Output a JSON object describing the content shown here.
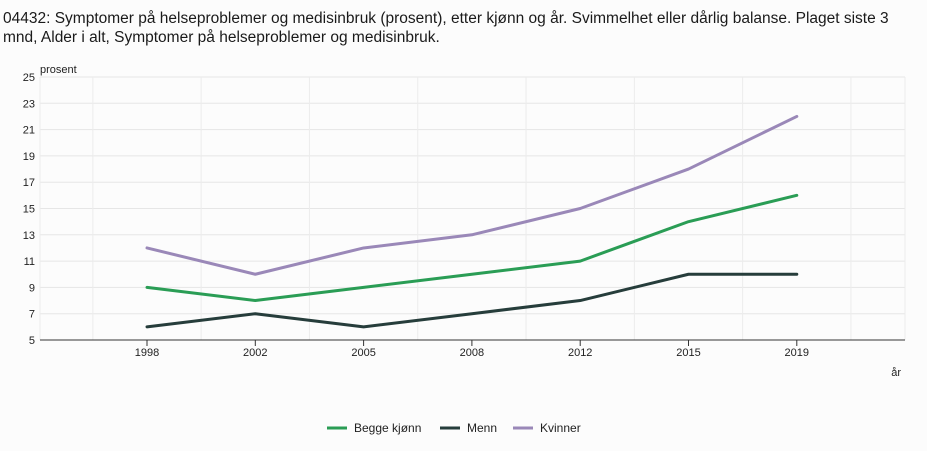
{
  "chart_data": {
    "type": "line",
    "title": "04432: Symptomer på helseproblemer og medisinbruk (prosent), etter kjønn og år. Svimmelhet eller dårlig balanse. Plaget siste 3 mnd, Alder i alt, Symptomer på helseproblemer og medisinbruk.",
    "ylabel": "prosent",
    "xlabel": "år",
    "categories": [
      "1998",
      "2002",
      "2005",
      "2008",
      "2012",
      "2015",
      "2019"
    ],
    "ylim": [
      5,
      25
    ],
    "yticks": [
      5,
      7,
      9,
      11,
      13,
      15,
      17,
      19,
      21,
      23,
      25
    ],
    "grid": true,
    "legend_position": "bottom-center",
    "series": [
      {
        "name": "Begge kjønn",
        "color": "#2a9d55",
        "values": [
          9,
          8,
          9,
          10,
          11,
          14,
          16
        ]
      },
      {
        "name": "Menn",
        "color": "#263d3b",
        "values": [
          6,
          7,
          6,
          7,
          8,
          10,
          10
        ]
      },
      {
        "name": "Kvinner",
        "color": "#9a88b8",
        "values": [
          12,
          10,
          12,
          13,
          15,
          18,
          22
        ]
      }
    ]
  }
}
